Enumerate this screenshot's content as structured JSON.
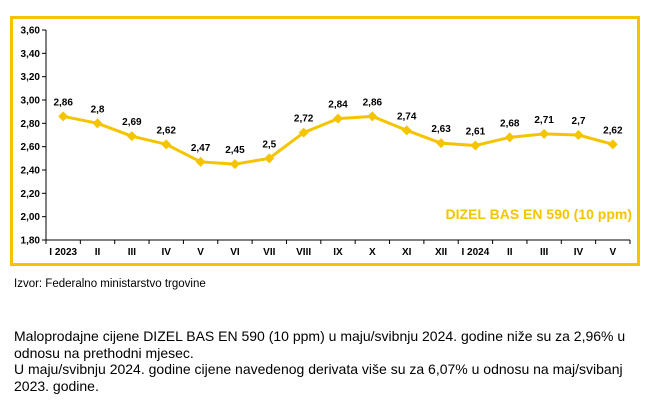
{
  "chart_data": {
    "type": "line",
    "categories": [
      "I 2023",
      "II",
      "III",
      "IV",
      "V",
      "VI",
      "VII",
      "VIII",
      "IX",
      "X",
      "XI",
      "XII",
      "I 2024",
      "II",
      "III",
      "IV",
      "V"
    ],
    "series": [
      {
        "name": "DIZEL BAS EN 590 (10 ppm)",
        "values": [
          2.86,
          2.8,
          2.69,
          2.62,
          2.47,
          2.45,
          2.5,
          2.72,
          2.84,
          2.86,
          2.74,
          2.63,
          2.61,
          2.68,
          2.71,
          2.7,
          2.62
        ],
        "value_labels": [
          "2,86",
          "2,8",
          "2,69",
          "2,62",
          "2,47",
          "2,45",
          "2,5",
          "2,72",
          "2,84",
          "2,86",
          "2,74",
          "2,63",
          "2,61",
          "2,68",
          "2,71",
          "2,7",
          "2,62"
        ]
      }
    ],
    "ylim": [
      1.8,
      3.6
    ],
    "yticks": [
      "1,80",
      "2,00",
      "2,20",
      "2,40",
      "2,60",
      "2,80",
      "3,00",
      "3,20",
      "3,40",
      "3,60"
    ],
    "grid": false,
    "legend_position": "bottom-right",
    "colors": {
      "line": "#F5C400",
      "frame": "#F5C400",
      "axis": "#000000"
    }
  },
  "source": "Izvor:  Federalno ministarstvo trgovine",
  "paragraphs": [
    "Maloprodajne cijene DIZEL BAS EN 590 (10 ppm) u maju/svibnju 2024. godine niže su za 2,96% u odnosu na prethodni mjesec.",
    "U maju/svibnju 2024. godine cijene navedenog derivata više su za 6,07% u odnosu na maj/svibanj 2023. godine."
  ]
}
